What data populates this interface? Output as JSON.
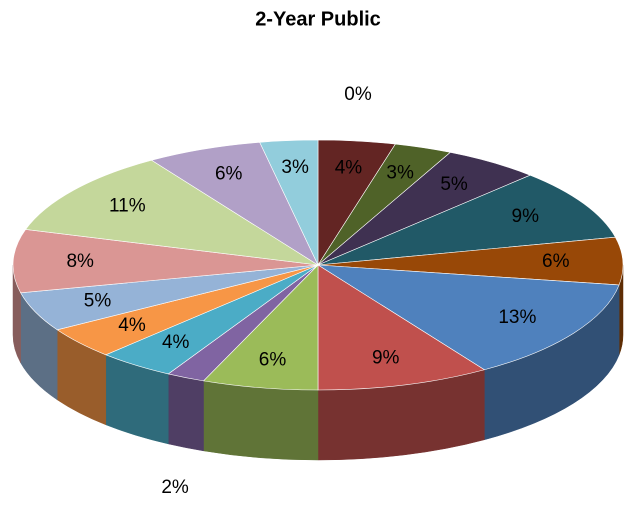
{
  "chart_data": {
    "type": "pie3d",
    "title": "2-Year Public",
    "values": [
      0,
      4,
      3,
      5,
      9,
      6,
      13,
      9,
      6,
      2,
      4,
      4,
      5,
      8,
      11,
      6,
      3
    ],
    "value_labels": [
      "0%",
      "4%",
      "3%",
      "5%",
      "9%",
      "6%",
      "13%",
      "9%",
      "6%",
      "2%",
      "4%",
      "4%",
      "5%",
      "8%",
      "11%",
      "6%",
      "3%"
    ],
    "colors": [
      "#1f3864",
      "#632523",
      "#4f6228",
      "#3f3151",
      "#215967",
      "#984807",
      "#4f81bd",
      "#c0504d",
      "#9bbb59",
      "#8064a2",
      "#4bacc6",
      "#f79646",
      "#95b3d7",
      "#da9694",
      "#c4d79b",
      "#b1a0c7",
      "#92cddc"
    ]
  }
}
